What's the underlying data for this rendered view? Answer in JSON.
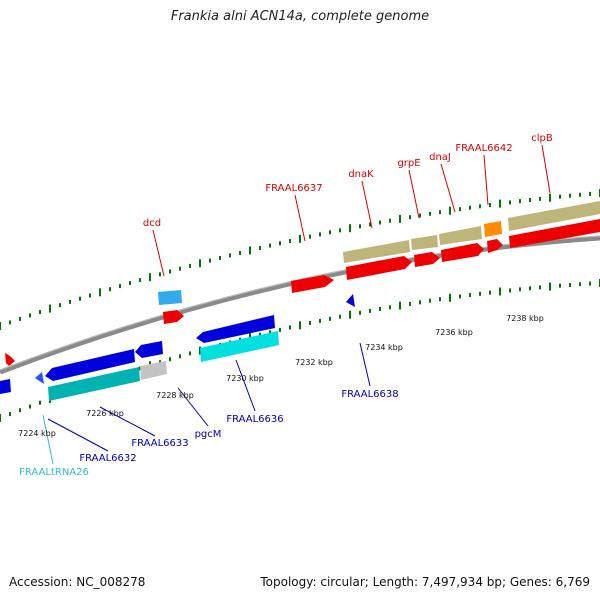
{
  "title": "Frankia alni ACN14a, complete genome",
  "footer": {
    "accession": "Accession: NC_008278",
    "summary": "Topology: circular; Length: 7,497,934 bp; Genes: 6,769"
  },
  "colors": {
    "forward_label": "#dd0000",
    "reverse_label": "#0000bb",
    "rna_label": "#33bbcc",
    "tick": "#007700",
    "backbone": "#888888",
    "cds_forward": "#ee0000",
    "cds_reverse": "#0000dd",
    "cog_khaki": "#bdb57a",
    "cog_cyan": "#00e0e0",
    "cog_teal": "#00b3b3",
    "cog_sky": "#33aaee",
    "cog_gray": "#c4c4c4",
    "cog_orange": "#ff8c00"
  },
  "scale_labels": [
    "7224 kbp",
    "7226 kbp",
    "7228 kbp",
    "7230 kbp",
    "7232 kbp",
    "7234 kbp",
    "7236 kbp",
    "7238 kbp"
  ],
  "gene_labels": {
    "forward": [
      "dcd",
      "FRAAL6637",
      "dnaK",
      "grpE",
      "dnaJ",
      "FRAAL6642",
      "clpB"
    ],
    "reverse": [
      "FRAAL6632",
      "FRAAL6633",
      "pgcM",
      "FRAAL6636",
      "FRAAL6638"
    ],
    "rna": [
      "FRAALtRNA26"
    ]
  }
}
